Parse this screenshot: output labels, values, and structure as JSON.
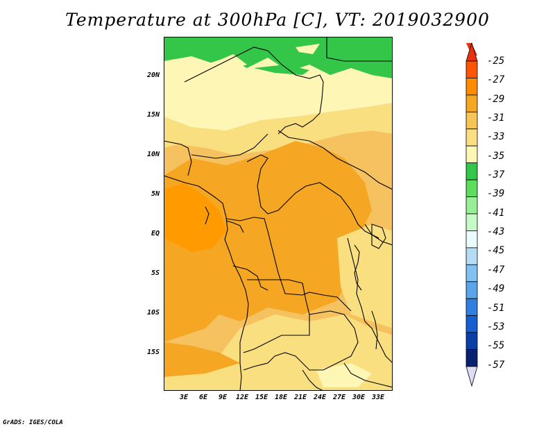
{
  "title": "Temperature at 300hPa [C], VT: 2019032900",
  "credit": "GrADS: IGES/COLA",
  "axes": {
    "lat_labels": [
      "20N",
      "15N",
      "10N",
      "5N",
      "EQ",
      "5S",
      "10S",
      "15S"
    ],
    "lon_labels": [
      "3E",
      "6E",
      "9E",
      "12E",
      "15E",
      "18E",
      "21E",
      "24E",
      "27E",
      "30E",
      "33E"
    ]
  },
  "colorbar": {
    "labels": [
      "-25",
      "-27",
      "-29",
      "-31",
      "-33",
      "-35",
      "-37",
      "-39",
      "-41",
      "-43",
      "-45",
      "-47",
      "-49",
      "-51",
      "-53",
      "-55",
      "-57"
    ],
    "colors": [
      "#ff5500",
      "#ff8c00",
      "#f5a623",
      "#f7c555",
      "#f9df80",
      "#fef6b4",
      "#33c648",
      "#5cdd5c",
      "#97ef97",
      "#c6fac6",
      "#eafcfc",
      "#b4ddf5",
      "#82c2f0",
      "#5aa5ea",
      "#2e7fe0",
      "#155fd0",
      "#0a3fa8",
      "#082070"
    ],
    "end_colors": {
      "top": "#e8320e",
      "bottom": "#dddcf5"
    }
  },
  "palette": {
    "sea_green": "#33c648",
    "pale": "#fef6b4",
    "light_orange": "#f9df80",
    "orange_mid": "#f7c555",
    "orange": "#f5a623",
    "deep_orange": "#ff9a00"
  }
}
